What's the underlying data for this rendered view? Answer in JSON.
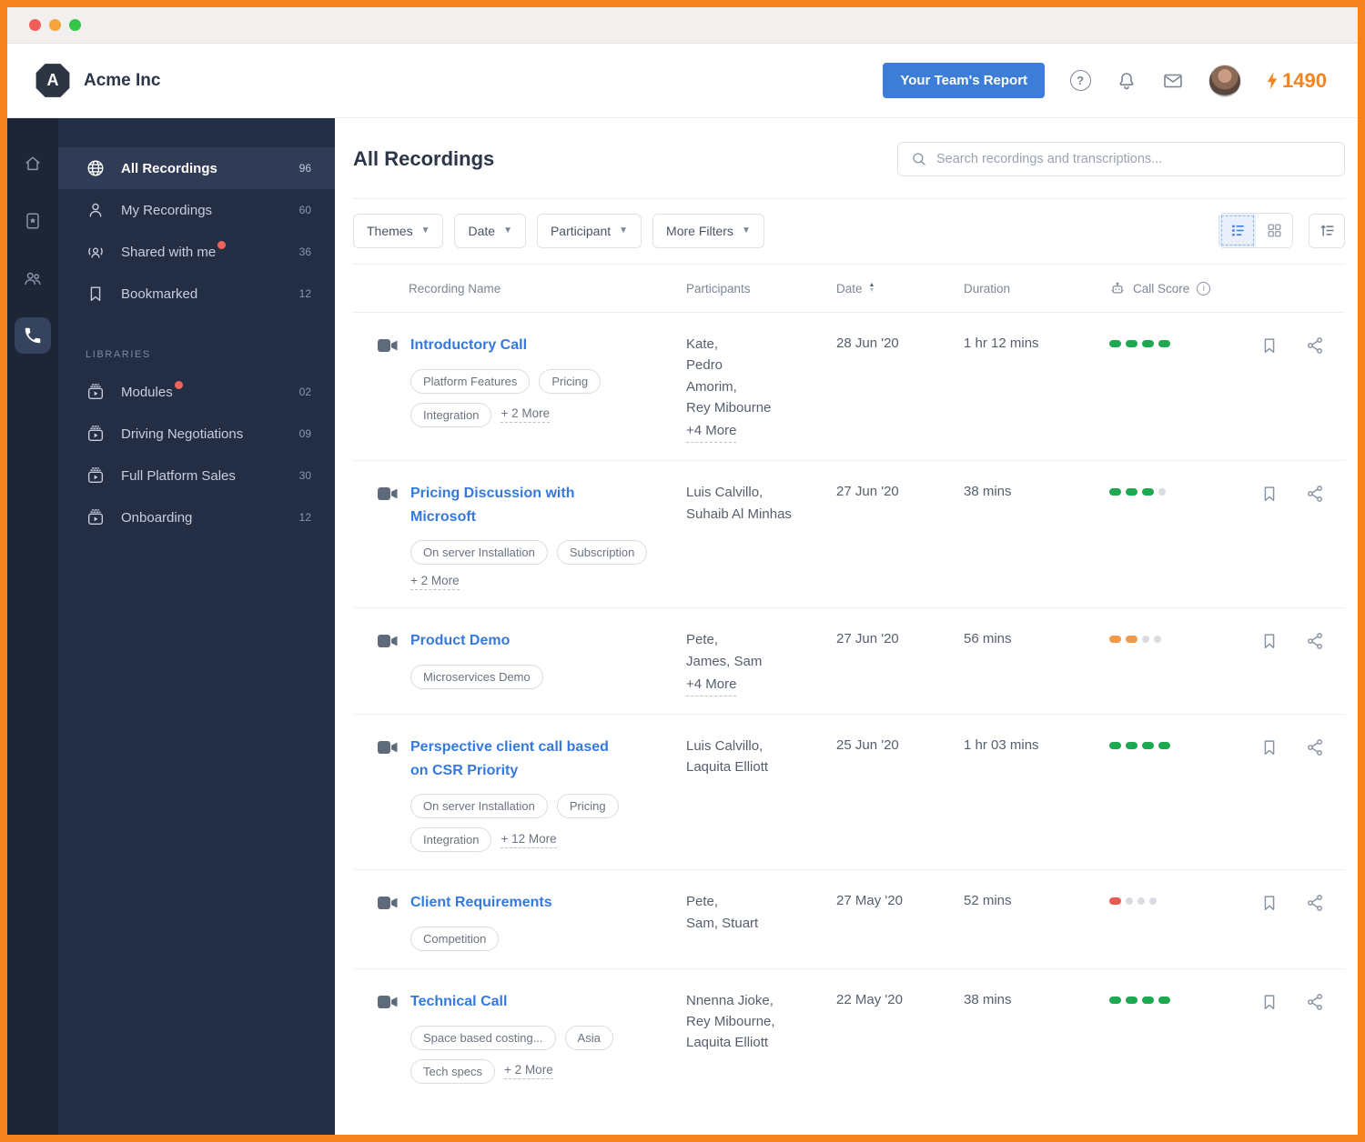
{
  "header": {
    "company": "Acme Inc",
    "logo_letter": "A",
    "report_button": "Your Team's Report",
    "credits": "1490"
  },
  "sidebar": {
    "items": [
      {
        "label": "All Recordings",
        "count": "96",
        "icon": "globe-icon",
        "active": true,
        "notification": false
      },
      {
        "label": "My Recordings",
        "count": "60",
        "icon": "person-icon",
        "active": false,
        "notification": false
      },
      {
        "label": "Shared with me",
        "count": "36",
        "icon": "people-icon",
        "active": false,
        "notification": true
      },
      {
        "label": "Bookmarked",
        "count": "12",
        "icon": "bookmark-icon",
        "active": false,
        "notification": false
      }
    ],
    "libraries_label": "LIBRARIES",
    "libraries": [
      {
        "label": "Modules",
        "count": "02",
        "notification": true
      },
      {
        "label": "Driving Negotiations",
        "count": "09",
        "notification": false
      },
      {
        "label": "Full Platform Sales",
        "count": "30",
        "notification": false
      },
      {
        "label": "Onboarding",
        "count": "12",
        "notification": false
      }
    ]
  },
  "main": {
    "title": "All Recordings",
    "search_placeholder": "Search recordings and transcriptions...",
    "filters": [
      "Themes",
      "Date",
      "Participant",
      "More Filters"
    ],
    "table": {
      "columns": [
        "Recording Name",
        "Participants",
        "Date",
        "Duration",
        "Call Score"
      ],
      "score_max": 4,
      "rows": [
        {
          "name": "Introductory Call",
          "tags": [
            "Platform Features",
            "Pricing",
            "Integration"
          ],
          "more_tags": "+ 2 More",
          "participants": "Kate,\nPedro\nAmorim,\nRey Mibourne",
          "more_participants": "+4 More",
          "date": "28 Jun '20",
          "duration": "1 hr 12 mins",
          "score": 4,
          "score_color": "green"
        },
        {
          "name": "Pricing Discussion with Microsoft",
          "tags": [
            "On server Installation",
            "Subscription"
          ],
          "more_tags": "+ 2 More",
          "participants": "Luis Calvillo,\nSuhaib Al Minhas",
          "more_participants": null,
          "date": "27 Jun '20",
          "duration": "38 mins",
          "score": 3,
          "score_color": "green"
        },
        {
          "name": "Product Demo",
          "tags": [
            "Microservices Demo"
          ],
          "more_tags": null,
          "participants": "Pete,\nJames, Sam",
          "more_participants": "+4 More",
          "date": "27 Jun '20",
          "duration": "56 mins",
          "score": 2,
          "score_color": "orange"
        },
        {
          "name": "Perspective client call based on CSR Priority",
          "tags": [
            "On server Installation",
            "Pricing",
            "Integration"
          ],
          "more_tags": "+ 12 More",
          "participants": "Luis Calvillo,\nLaquita Elliott",
          "more_participants": null,
          "date": "25 Jun '20",
          "duration": "1 hr 03 mins",
          "score": 4,
          "score_color": "green"
        },
        {
          "name": "Client Requirements",
          "tags": [
            "Competition"
          ],
          "more_tags": null,
          "participants": "Pete,\nSam, Stuart",
          "more_participants": null,
          "date": "27 May '20",
          "duration": "52 mins",
          "score": 1,
          "score_color": "red"
        },
        {
          "name": "Technical Call",
          "tags": [
            "Space based costing...",
            "Asia",
            "Tech specs"
          ],
          "more_tags": "+ 2 More",
          "participants": "Nnenna Jioke,\nRey Mibourne,\nLaquita Elliott",
          "more_participants": null,
          "date": "22 May '20",
          "duration": "38 mins",
          "score": 4,
          "score_color": "green"
        }
      ]
    }
  },
  "colors": {
    "frame_orange": "#F6831E",
    "button_blue": "#3D7CD7",
    "link_blue": "#3579DE",
    "score_green": "#1EA951",
    "score_orange": "#F2994A",
    "score_red": "#EA5A52",
    "score_empty": "#D8DCE1",
    "notification_red": "#F0635A"
  }
}
